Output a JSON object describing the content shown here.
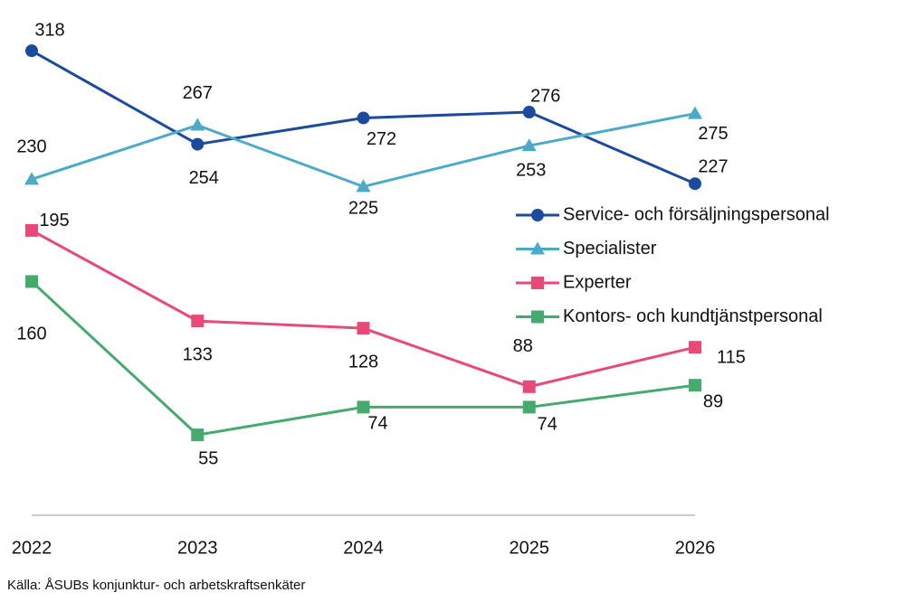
{
  "chart_data": {
    "type": "line",
    "categories": [
      "2022",
      "2023",
      "2024",
      "2025",
      "2026"
    ],
    "series": [
      {
        "name": "Service- och försäljningspersonal",
        "color": "#1a4b9e",
        "marker": "circle",
        "values": [
          318,
          254,
          272,
          276,
          227
        ]
      },
      {
        "name": "Specialister",
        "color": "#4aaac8",
        "marker": "triangle",
        "values": [
          230,
          267,
          225,
          253,
          275
        ]
      },
      {
        "name": "Experter",
        "color": "#e84a78",
        "marker": "square",
        "values": [
          195,
          133,
          128,
          88,
          115
        ]
      },
      {
        "name": "Kontors- och kundtjänstpersonal",
        "color": "#44aa6e",
        "marker": "square",
        "values": [
          160,
          55,
          74,
          74,
          89
        ]
      }
    ],
    "ylim": [
      0,
      340
    ],
    "source": "Källa: ÅSUBs konjunktur- och arbetskraftsenkäter"
  }
}
